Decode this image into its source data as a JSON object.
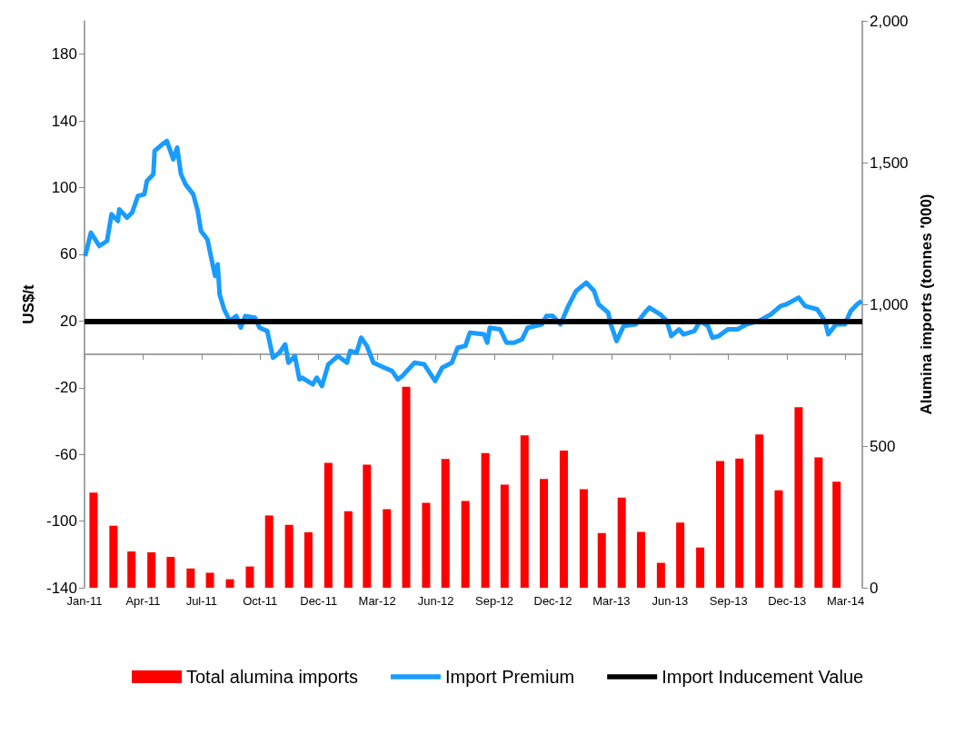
{
  "chart_data": {
    "type": "bar",
    "ylabel": "US$/t",
    "y2label": "Alumina imports (tonnes '000)",
    "xlim": [
      "2011-01-01",
      "2014-04-24"
    ],
    "xticks": [
      {
        "value": "2011-01-01",
        "label": "Jan-11"
      },
      {
        "value": "2011-04-02",
        "label": "Apr-11"
      },
      {
        "value": "2011-07-02",
        "label": "Jul-11"
      },
      {
        "value": "2011-10-01",
        "label": "Oct-11"
      },
      {
        "value": "2011-12-31",
        "label": "Dec-11"
      },
      {
        "value": "2012-03-31",
        "label": "Mar-12"
      },
      {
        "value": "2012-06-30",
        "label": "Jun-12"
      },
      {
        "value": "2012-09-29",
        "label": "Sep-12"
      },
      {
        "value": "2012-12-29",
        "label": "Dec-12"
      },
      {
        "value": "2013-03-30",
        "label": "Mar-13"
      },
      {
        "value": "2013-06-29",
        "label": "Jun-13"
      },
      {
        "value": "2013-09-28",
        "label": "Sep-13"
      },
      {
        "value": "2013-12-28",
        "label": "Dec-13"
      },
      {
        "value": "2014-03-29",
        "label": "Mar-14"
      }
    ],
    "ylim": [
      -140,
      200
    ],
    "yticks": [
      -140,
      -100,
      -60,
      -20,
      20,
      60,
      100,
      140,
      180
    ],
    "y2lim": [
      0,
      2000
    ],
    "y2ticks": [
      0,
      500,
      {
        "value": 1000,
        "label": "1,000"
      },
      {
        "value": 1500,
        "label": "1,500"
      },
      {
        "value": 2000,
        "label": "2,000"
      }
    ],
    "legend": "bottom",
    "series": [
      {
        "name": "Total alumina imports",
        "axis": "y2",
        "color": "#ff0000",
        "x": [
          "2011-01-15",
          "2011-02-15",
          "2011-03-15",
          "2011-04-15",
          "2011-05-15",
          "2011-06-15",
          "2011-07-15",
          "2011-08-15",
          "2011-09-15",
          "2011-10-15",
          "2011-11-15",
          "2011-12-15",
          "2012-01-15",
          "2012-02-15",
          "2012-03-15",
          "2012-04-15",
          "2012-05-15",
          "2012-06-15",
          "2012-07-15",
          "2012-08-15",
          "2012-09-15",
          "2012-10-15",
          "2012-11-15",
          "2012-12-15",
          "2013-01-15",
          "2013-02-15",
          "2013-03-15",
          "2013-04-15",
          "2013-05-15",
          "2013-06-15",
          "2013-07-15",
          "2013-08-15",
          "2013-09-15",
          "2013-10-15",
          "2013-11-15",
          "2013-12-15",
          "2014-01-15",
          "2014-02-15",
          "2014-03-15"
        ],
        "values": [
          336,
          219,
          128,
          125,
          109,
          68,
          53,
          30,
          75,
          255,
          222,
          196,
          441,
          270,
          434,
          277,
          709,
          300,
          454,
          306,
          475,
          364,
          538,
          384,
          484,
          348,
          193,
          318,
          197,
          88,
          230,
          142,
          447,
          456,
          541,
          344,
          637,
          460,
          374
        ]
      },
      {
        "name": "Import Premium",
        "type": "line",
        "color": "#1a9cff",
        "x": [
          "2011-01-02",
          "2011-01-11",
          "2011-01-24",
          "2011-02-05",
          "2011-02-12",
          "2011-02-22",
          "2011-02-24",
          "2011-03-08",
          "2011-03-16",
          "2011-03-25",
          "2011-04-04",
          "2011-04-08",
          "2011-04-18",
          "2011-04-20",
          "2011-05-02",
          "2011-05-09",
          "2011-05-19",
          "2011-05-25",
          "2011-05-31",
          "2011-06-07",
          "2011-06-19",
          "2011-06-26",
          "2011-07-01",
          "2011-07-11",
          "2011-07-18",
          "2011-07-23",
          "2011-07-27",
          "2011-07-30",
          "2011-08-06",
          "2011-08-15",
          "2011-08-25",
          "2011-09-01",
          "2011-09-08",
          "2011-09-23",
          "2011-09-30",
          "2011-10-12",
          "2011-10-21",
          "2011-10-31",
          "2011-11-09",
          "2011-11-14",
          "2011-11-24",
          "2011-12-01",
          "2011-12-05",
          "2011-12-22",
          "2011-12-28",
          "2012-01-05",
          "2012-01-15",
          "2012-01-30",
          "2012-02-13",
          "2012-02-18",
          "2012-02-28",
          "2012-03-06",
          "2012-03-15",
          "2012-03-25",
          "2012-04-11",
          "2012-04-23",
          "2012-05-02",
          "2012-05-09",
          "2012-05-28",
          "2012-06-12",
          "2012-06-29",
          "2012-07-10",
          "2012-07-25",
          "2012-08-03",
          "2012-08-15",
          "2012-08-22",
          "2012-09-13",
          "2012-09-18",
          "2012-09-22",
          "2012-10-08",
          "2012-10-18",
          "2012-10-30",
          "2012-11-11",
          "2012-11-20",
          "2012-12-12",
          "2012-12-19",
          "2012-12-29",
          "2013-01-10",
          "2013-01-22",
          "2013-02-03",
          "2013-02-19",
          "2013-03-03",
          "2013-03-10",
          "2013-03-25",
          "2013-03-29",
          "2013-04-07",
          "2013-04-18",
          "2013-05-07",
          "2013-05-21",
          "2013-05-28",
          "2013-06-14",
          "2013-06-24",
          "2013-07-01",
          "2013-07-13",
          "2013-07-20",
          "2013-08-06",
          "2013-08-15",
          "2013-08-27",
          "2013-09-03",
          "2013-09-13",
          "2013-09-27",
          "2013-10-12",
          "2013-10-26",
          "2013-11-14",
          "2013-12-03",
          "2013-12-18",
          "2013-12-27",
          "2014-01-15",
          "2014-01-25",
          "2014-02-13",
          "2014-02-25",
          "2014-03-02",
          "2014-03-14",
          "2014-03-28",
          "2014-04-06",
          "2014-04-16",
          "2014-04-23"
        ],
        "values": [
          59,
          73,
          65,
          68,
          84,
          80,
          87,
          82,
          85,
          95,
          96,
          104,
          108,
          122,
          126,
          128,
          117,
          124,
          108,
          102,
          96,
          86,
          74,
          69,
          56,
          47,
          54,
          36,
          27,
          20,
          23,
          16,
          23,
          22,
          16,
          14,
          -2,
          1,
          6,
          -5,
          -1,
          -15,
          -14,
          -18,
          -14,
          -19,
          -6,
          -1,
          -5,
          2,
          1,
          10,
          5,
          -5,
          -8,
          -10,
          -15,
          -13,
          -5,
          -6,
          -16,
          -8,
          -5,
          4,
          5,
          13,
          12,
          7,
          16,
          15,
          7,
          7,
          9,
          16,
          18,
          23,
          23,
          18,
          29,
          38,
          43,
          38,
          30,
          25,
          18,
          8,
          17,
          18,
          25,
          28,
          24,
          20,
          11,
          15,
          12,
          14,
          20,
          17,
          10,
          11,
          15,
          15,
          18,
          20,
          24,
          29,
          30,
          34,
          29,
          27,
          20,
          12,
          18,
          18,
          26,
          30,
          32
        ]
      }
    ],
    "ref_lines": [
      {
        "axis": "y",
        "value": 20,
        "label": "Import Inducement Value",
        "color": "#000000"
      }
    ]
  }
}
